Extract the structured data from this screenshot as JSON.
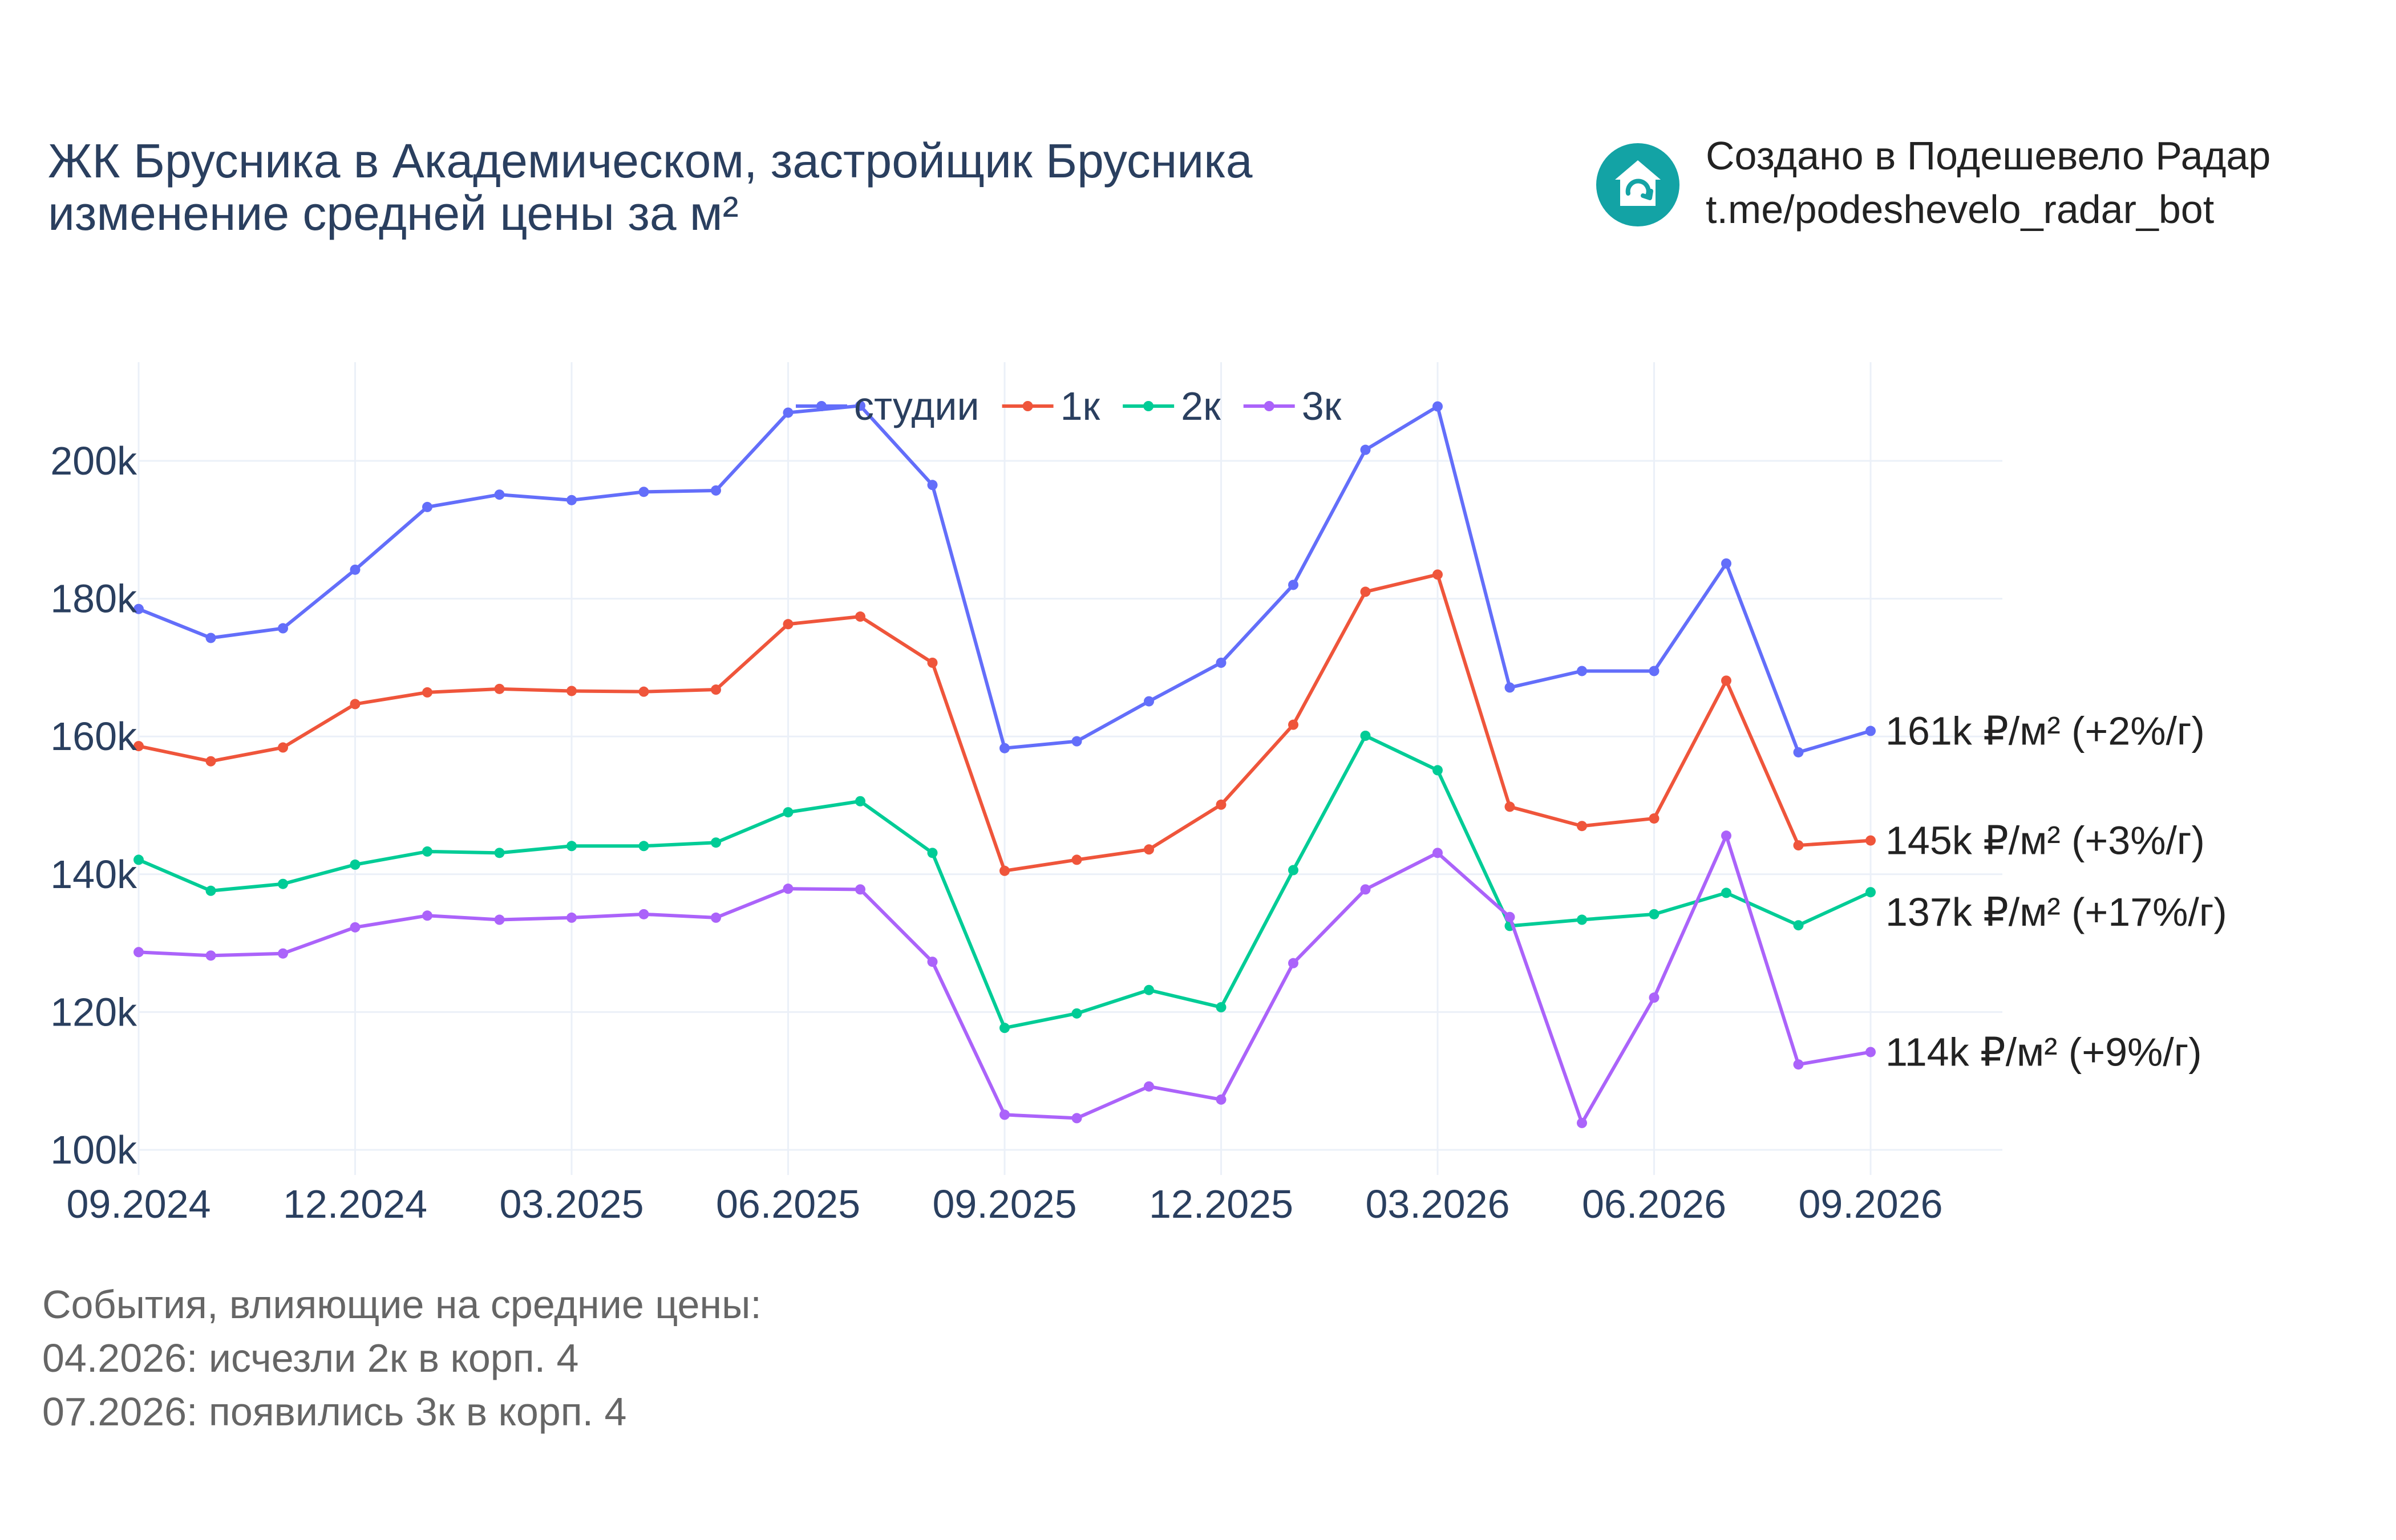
{
  "title": {
    "line1": "ЖК Брусника в Академическом, застройщик Брусника",
    "line2": "изменение средней цены за м²"
  },
  "brand": {
    "line1": "Создано в Подешевело Радар",
    "line2": "t.me/podeshevelo_radar_bot",
    "logo_icon": "house-refresh-icon",
    "logo_color": "#13a3a5"
  },
  "events": {
    "heading": "События, влияющие на средние цены:",
    "items": [
      "04.2026: исчезли 2к в корп. 4",
      "07.2026: появились 3к в корп. 4"
    ]
  },
  "chart_data": {
    "type": "line",
    "x": [
      "09.2024",
      "10.2024",
      "11.2024",
      "12.2024",
      "01.2025",
      "02.2025",
      "03.2025",
      "04.2025",
      "05.2025",
      "06.2025",
      "07.2025",
      "08.2025",
      "09.2025",
      "10.2025",
      "11.2025",
      "12.2025",
      "01.2026",
      "02.2026",
      "03.2026",
      "04.2026",
      "05.2026",
      "06.2026",
      "07.2026",
      "08.2026",
      "09.2026"
    ],
    "x_tick_labels": [
      "09.2024",
      "12.2024",
      "03.2025",
      "06.2025",
      "09.2025",
      "12.2025",
      "03.2026",
      "06.2026",
      "09.2026"
    ],
    "y_tick_values": [
      100000,
      120000,
      140000,
      160000,
      180000,
      200000
    ],
    "y_tick_labels": [
      "100k",
      "120k",
      "140k",
      "160k",
      "180k",
      "200k"
    ],
    "ylim": [
      97500,
      215000
    ],
    "grid": true,
    "legend_position": "top-center",
    "series": [
      {
        "name": "студии",
        "color": "#636efa",
        "values": [
          178500,
          174300,
          175700,
          184200,
          193300,
          195100,
          194300,
          195500,
          195700,
          207000,
          208000,
          196500,
          158300,
          159300,
          165100,
          170700,
          182000,
          201600,
          207900,
          167100,
          169500,
          169500,
          185100,
          157700,
          160800
        ],
        "end_label": "161k ₽/м² (+2%/г)"
      },
      {
        "name": "1к",
        "color": "#ef553b",
        "values": [
          158600,
          156400,
          158400,
          164700,
          166400,
          166900,
          166600,
          166500,
          166800,
          176300,
          177400,
          170700,
          140500,
          142100,
          143600,
          150100,
          161700,
          181000,
          183500,
          149800,
          147000,
          148100,
          168100,
          144200,
          144900
        ],
        "end_label": "145k ₽/м² (+3%/г)"
      },
      {
        "name": "2к",
        "color": "#00cc96",
        "values": [
          142100,
          137600,
          138600,
          141400,
          143300,
          143100,
          144100,
          144100,
          144600,
          149000,
          150600,
          143100,
          117700,
          119800,
          123200,
          120700,
          140600,
          160100,
          155100,
          132500,
          133400,
          134200,
          137300,
          132600,
          137400
        ],
        "end_label": "137k ₽/м² (+17%/г)"
      },
      {
        "name": "3к",
        "color": "#ab63fa",
        "values": [
          128700,
          128200,
          128500,
          132300,
          134000,
          133400,
          133700,
          134200,
          133700,
          137900,
          137800,
          127300,
          105100,
          104600,
          109200,
          107300,
          127100,
          137800,
          143100,
          133800,
          103900,
          122100,
          145600,
          112400,
          114200
        ],
        "end_label": "114k ₽/м² (+9%/г)"
      }
    ]
  }
}
